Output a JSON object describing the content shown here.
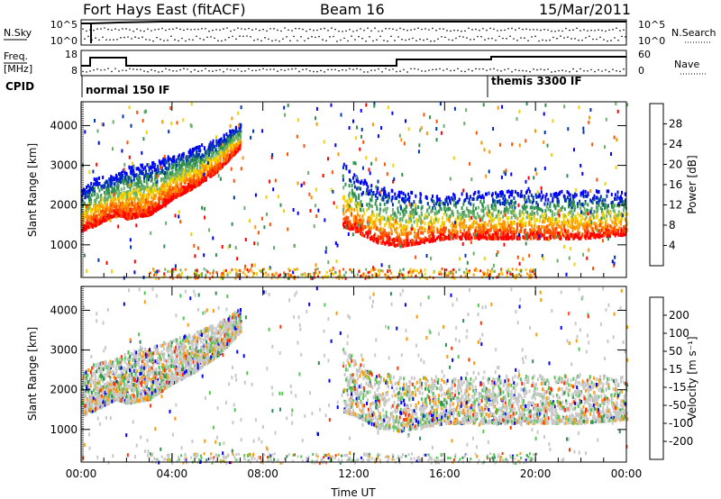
{
  "header": {
    "station": "Fort Hays East (fitACF)",
    "beam": "Beam 16",
    "date": "15/Mar/2011"
  },
  "status_panels": {
    "nsky_label": "N.Sky",
    "nsky_ticks": [
      "10^5",
      "10^0"
    ],
    "nsearch_label": "N.Search",
    "nsearch_ticks": [
      "10^5",
      "10^0"
    ],
    "freq_label_1": "Freq.",
    "freq_label_2": "[MHz]",
    "freq_ticks": [
      "18",
      "8"
    ],
    "nave_label": "Nave",
    "nave_ticks": [
      "60",
      "0"
    ],
    "cpid_label": "CPID",
    "cpid_modes": [
      "normal 150 IF",
      "themis 3300 IF"
    ]
  },
  "chart_data": [
    {
      "type": "heatmap",
      "title": "",
      "xlabel": "",
      "ylabel": "Slant Range [km]",
      "x_ticks": [
        "00:00",
        "04:00",
        "08:00",
        "12:00",
        "16:00",
        "20:00",
        "00:00"
      ],
      "xlim_hours": [
        0,
        24
      ],
      "y_ticks": [
        1000,
        2000,
        3000,
        4000
      ],
      "ylim": [
        180,
        4600
      ],
      "colorbar": {
        "label": "Power [dB]",
        "ticks": [
          4,
          8,
          12,
          16,
          20,
          24,
          28
        ],
        "range": [
          0,
          32
        ],
        "colors": [
          "#0000ff",
          "#0032b4",
          "#2f8f4f",
          "#6ab06a",
          "#f2d200",
          "#ff9600",
          "#ff5000",
          "#ff0000"
        ]
      },
      "scatter_regions": [
        {
          "x": [
            0,
            0.5,
            1.5,
            2,
            3,
            4,
            5,
            6,
            7
          ],
          "y_lower": [
            1400,
            1500,
            1800,
            1700,
            1800,
            2200,
            2500,
            2900,
            3500
          ],
          "y_upper": [
            2400,
            2700,
            2800,
            3000,
            3100,
            3300,
            3500,
            3700,
            4100
          ]
        },
        {
          "x": [
            11.5,
            12,
            13,
            14,
            16,
            18,
            20,
            22,
            24
          ],
          "y_lower": [
            1500,
            1400,
            1100,
            1000,
            1200,
            1200,
            1200,
            1200,
            1300
          ],
          "y_upper": [
            3200,
            2800,
            2500,
            2400,
            2300,
            2400,
            2400,
            2400,
            2400
          ]
        }
      ]
    },
    {
      "type": "heatmap",
      "title": "",
      "xlabel": "Time UT",
      "ylabel": "Slant Range [km]",
      "x_ticks": [
        "00:00",
        "04:00",
        "08:00",
        "12:00",
        "16:00",
        "20:00",
        "00:00"
      ],
      "xlim_hours": [
        0,
        24
      ],
      "y_ticks": [
        1000,
        2000,
        3000,
        4000
      ],
      "ylim": [
        180,
        4600
      ],
      "colorbar": {
        "label": "Velocity [m s⁻¹]",
        "ticks": [
          "200",
          "100",
          "50",
          "15",
          "-15",
          "-50",
          "-100",
          "-200"
        ],
        "colors": [
          "#0000ff",
          "#1e3cb4",
          "#2f8f4f",
          "#52c852",
          "#c8c8c8",
          "#ff9a00",
          "#ff6400",
          "#ff3200",
          "#ff0000"
        ]
      },
      "scatter_regions": [
        {
          "x": [
            0,
            0.5,
            1.5,
            2,
            3,
            4,
            5,
            6,
            7
          ],
          "y_lower": [
            1400,
            1500,
            1800,
            1700,
            1800,
            2200,
            2500,
            2900,
            3500
          ],
          "y_upper": [
            2400,
            2700,
            2800,
            3000,
            3100,
            3300,
            3500,
            3700,
            4100
          ]
        },
        {
          "x": [
            11.5,
            12,
            13,
            14,
            16,
            18,
            20,
            22,
            24
          ],
          "y_lower": [
            1500,
            1400,
            1100,
            1000,
            1200,
            1200,
            1200,
            1200,
            1300
          ],
          "y_upper": [
            3200,
            2800,
            2500,
            2400,
            2300,
            2400,
            2400,
            2400,
            2400
          ]
        }
      ]
    }
  ]
}
